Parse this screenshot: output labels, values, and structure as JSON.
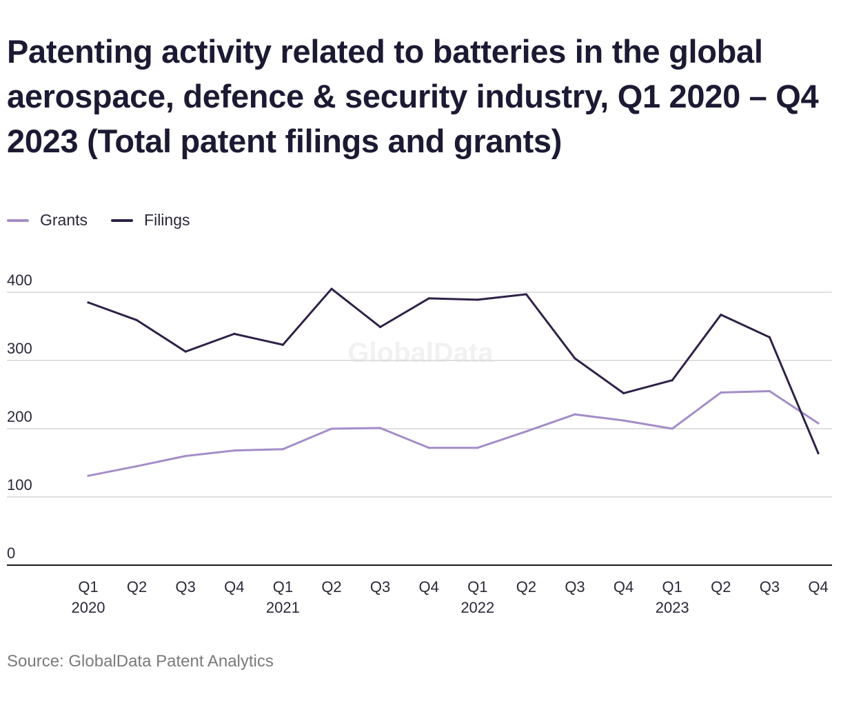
{
  "title": "Patenting activity related to batteries in the global aerospace, defence & security industry, Q1 2020 – Q4 2023 (Total patent filings and grants)",
  "source": "Source: GlobalData Patent Analytics",
  "watermark": "GlobalData",
  "colors": {
    "grants": "#a48cc8",
    "filings": "#2e2148",
    "grid": "#d6d6d6",
    "axis": "#1a1a1a",
    "text": "#2a2838"
  },
  "chart_data": {
    "type": "line",
    "categories": [
      "Q1",
      "Q2",
      "Q3",
      "Q4",
      "Q1",
      "Q2",
      "Q3",
      "Q4",
      "Q1",
      "Q2",
      "Q3",
      "Q4",
      "Q1",
      "Q2",
      "Q3",
      "Q4"
    ],
    "year_labels": [
      {
        "index": 0,
        "label": "2020"
      },
      {
        "index": 4,
        "label": "2021"
      },
      {
        "index": 8,
        "label": "2022"
      },
      {
        "index": 12,
        "label": "2023"
      }
    ],
    "series": [
      {
        "name": "Grants",
        "color": "#a48cc8",
        "values": [
          131,
          145,
          160,
          168,
          170,
          200,
          201,
          172,
          172,
          196,
          221,
          212,
          200,
          253,
          255,
          208
        ]
      },
      {
        "name": "Filings",
        "color": "#2e2148",
        "values": [
          385,
          359,
          313,
          339,
          323,
          405,
          349,
          391,
          389,
          397,
          303,
          252,
          271,
          367,
          334,
          164
        ]
      }
    ],
    "yticks": [
      0,
      100,
      200,
      300,
      400
    ],
    "ylim": [
      0,
      400
    ],
    "grid": true,
    "legend_position": "top-left"
  }
}
